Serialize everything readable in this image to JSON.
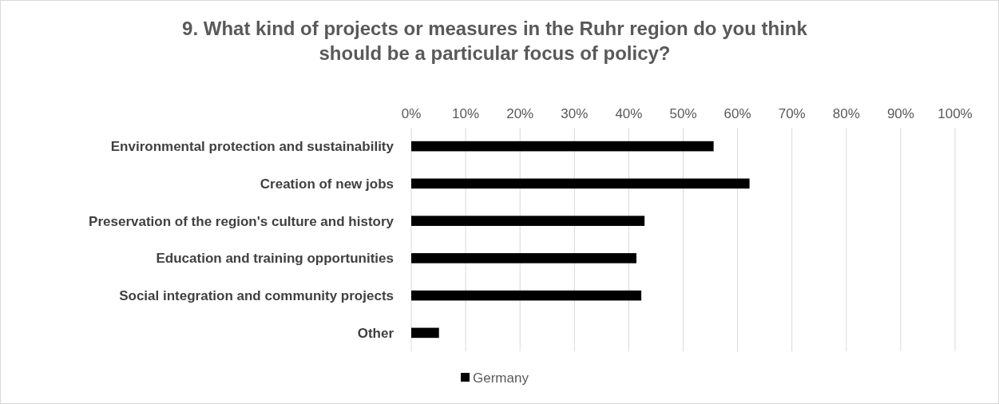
{
  "chart_data": {
    "type": "bar",
    "orientation": "horizontal",
    "title": "9.   What kind of projects or measures in the Ruhr region do you think should be a particular focus of policy?",
    "categories": [
      "Environmental protection and sustainability",
      "Creation of new jobs",
      "Preservation of the region's culture and history",
      "Education and training opportunities",
      "Social integration and community projects",
      "Other"
    ],
    "series": [
      {
        "name": "Germany",
        "color": "#000000",
        "values": [
          55.6,
          62.2,
          42.9,
          41.4,
          42.3,
          5.1
        ]
      }
    ],
    "xlim": [
      0,
      100
    ],
    "xticks": [
      {
        "value": 0,
        "label": "0%"
      },
      {
        "value": 10,
        "label": "10%"
      },
      {
        "value": 20,
        "label": "20%"
      },
      {
        "value": 30,
        "label": "30%"
      },
      {
        "value": 40,
        "label": "40%"
      },
      {
        "value": 50,
        "label": "50%"
      },
      {
        "value": 60,
        "label": "60%"
      },
      {
        "value": 70,
        "label": "70%"
      },
      {
        "value": 80,
        "label": "80%"
      },
      {
        "value": 90,
        "label": "90%"
      },
      {
        "value": 100,
        "label": "100%"
      }
    ],
    "grid": "x",
    "legend": "bottom"
  }
}
